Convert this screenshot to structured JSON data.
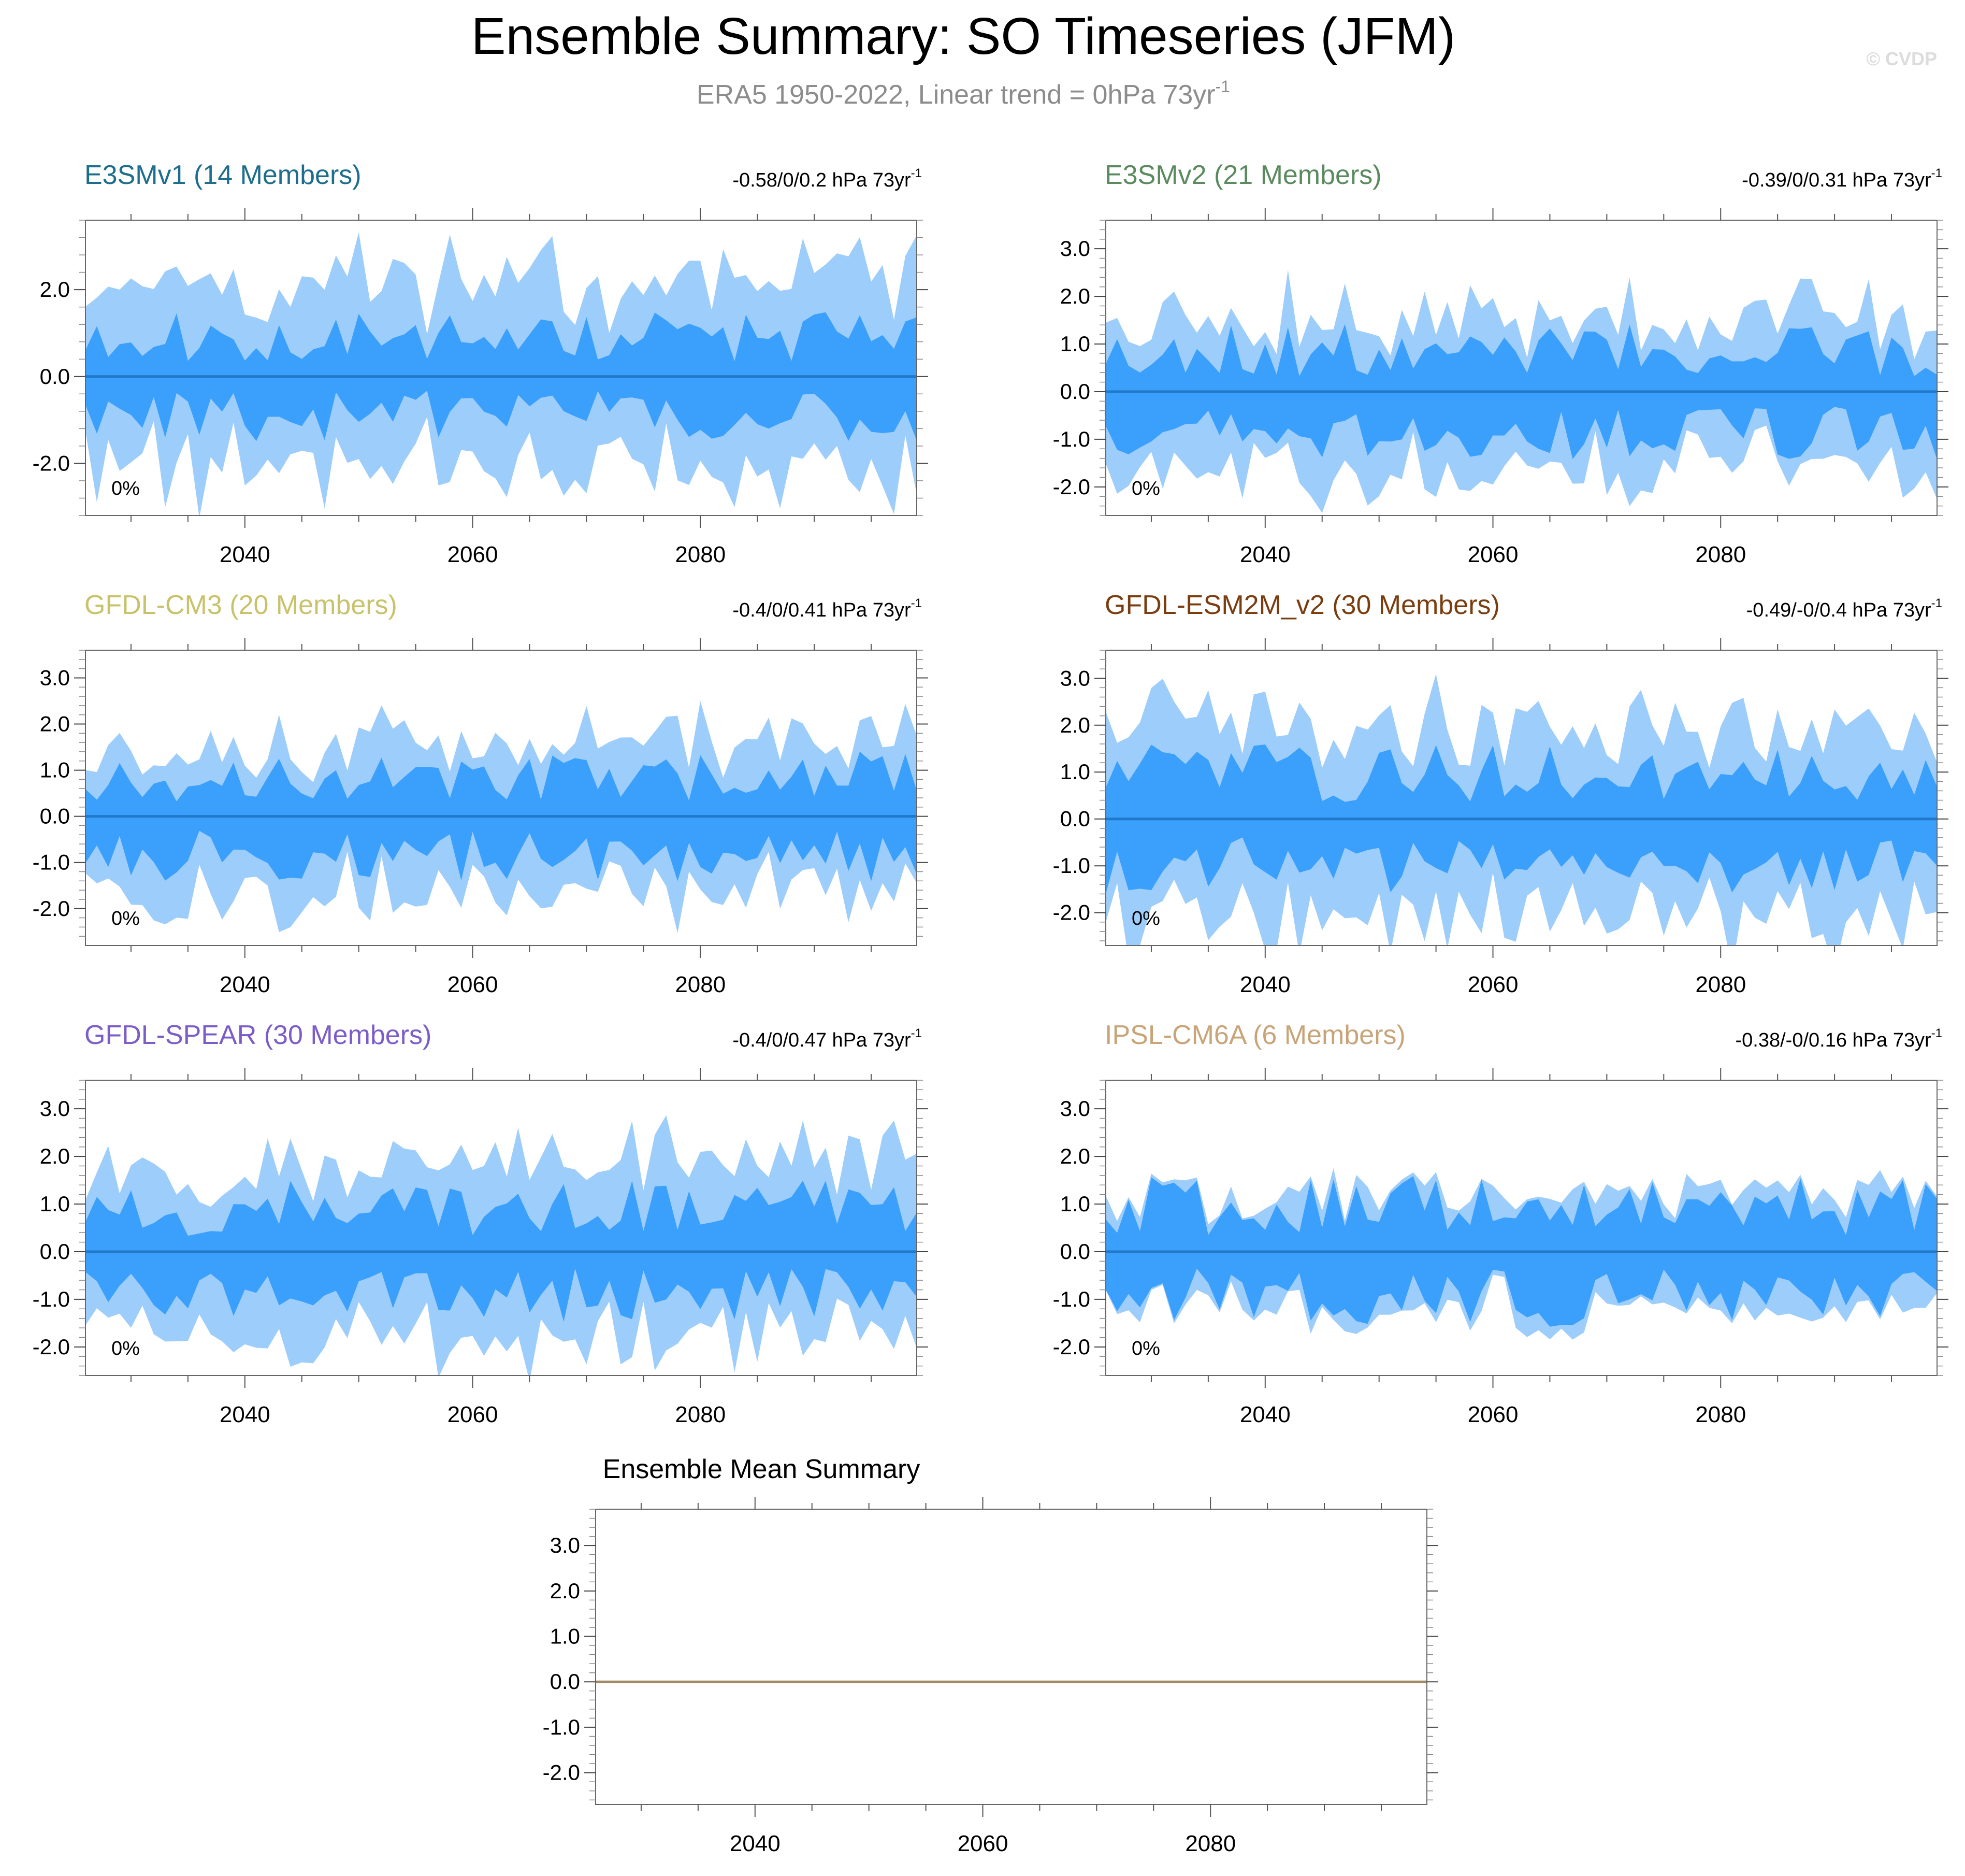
{
  "title": "Ensemble Summary: SO Timeseries (JFM)",
  "subtitle": "ERA5 1950-2022, Linear trend = 0hPa 73yr",
  "subtitle_sup": "-1",
  "watermark": "© CVDP",
  "colors": {
    "outer_band": "#9dcdfb",
    "inner_band": "#3b9ffc",
    "median_line": "#1f78c8",
    "mean_line": "#a28a62",
    "axis": "#000000"
  },
  "chart_data": [
    {
      "type": "area",
      "title": "E3SMv1 (14 Members)",
      "title_color": "#1c6e8c",
      "trend_label": "-0.58/0/0.2 hPa 73yr",
      "trend_sup": "-1",
      "pct_label": "0%",
      "xlim": [
        2026,
        2099
      ],
      "ylim": [
        -3.2,
        3.6
      ],
      "yticks": [
        -2.0,
        0.0,
        2.0
      ],
      "ytick_labels": [
        "-2.0",
        "0.0",
        "2.0"
      ],
      "xticks": [
        2040,
        2060,
        2080
      ],
      "xtick_labels": [
        "2040",
        "2060",
        "2080"
      ],
      "outer_amp": 1.0,
      "inner_amp": 0.42,
      "seed": 11
    },
    {
      "type": "area",
      "title": "E3SMv2 (21 Members)",
      "title_color": "#5a8a5e",
      "trend_label": "-0.39/0/0.31 hPa 73yr",
      "trend_sup": "-1",
      "pct_label": "0%",
      "xlim": [
        2026,
        2099
      ],
      "ylim": [
        -2.6,
        3.6
      ],
      "yticks": [
        -2.0,
        -1.0,
        0.0,
        1.0,
        2.0,
        3.0
      ],
      "ytick_labels": [
        "-2.0",
        "-1.0",
        "0.0",
        "1.0",
        "2.0",
        "3.0"
      ],
      "xticks": [
        2040,
        2060,
        2080
      ],
      "xtick_labels": [
        "2040",
        "2060",
        "2080"
      ],
      "outer_amp": 0.75,
      "inner_amp": 0.4,
      "seed": 23
    },
    {
      "type": "area",
      "title": "GFDL-CM3 (20 Members)",
      "title_color": "#c8c26a",
      "trend_label": "-0.4/0/0.41 hPa 73yr",
      "trend_sup": "-1",
      "pct_label": "0%",
      "xlim": [
        2026,
        2099
      ],
      "ylim": [
        -2.8,
        3.6
      ],
      "yticks": [
        -2.0,
        -1.0,
        0.0,
        1.0,
        2.0,
        3.0
      ],
      "ytick_labels": [
        "-2.0",
        "-1.0",
        "0.0",
        "1.0",
        "2.0",
        "3.0"
      ],
      "xticks": [
        2040,
        2060,
        2080
      ],
      "xtick_labels": [
        "2040",
        "2060",
        "2080"
      ],
      "outer_amp": 0.75,
      "inner_amp": 0.4,
      "seed": 37
    },
    {
      "type": "area",
      "title": "GFDL-ESM2M_v2 (30 Members)",
      "title_color": "#7a3d10",
      "trend_label": "-0.49/-0/0.4 hPa 73yr",
      "trend_sup": "-1",
      "pct_label": "0%",
      "xlim": [
        2026,
        2099
      ],
      "ylim": [
        -2.7,
        3.6
      ],
      "yticks": [
        -2.0,
        -1.0,
        0.0,
        1.0,
        2.0,
        3.0
      ],
      "ytick_labels": [
        "-2.0",
        "-1.0",
        "0.0",
        "1.0",
        "2.0",
        "3.0"
      ],
      "xticks": [
        2040,
        2060,
        2080
      ],
      "xtick_labels": [
        "2040",
        "2060",
        "2080"
      ],
      "outer_amp": 0.95,
      "inner_amp": 0.45,
      "seed": 41
    },
    {
      "type": "area",
      "title": "GFDL-SPEAR (30 Members)",
      "title_color": "#7b5cc8",
      "trend_label": "-0.4/0/0.47 hPa 73yr",
      "trend_sup": "-1",
      "pct_label": "0%",
      "xlim": [
        2026,
        2099
      ],
      "ylim": [
        -2.6,
        3.6
      ],
      "yticks": [
        -2.0,
        -1.0,
        0.0,
        1.0,
        2.0,
        3.0
      ],
      "ytick_labels": [
        "-2.0",
        "-1.0",
        "0.0",
        "1.0",
        "2.0",
        "3.0"
      ],
      "xticks": [
        2040,
        2060,
        2080
      ],
      "xtick_labels": [
        "2040",
        "2060",
        "2080"
      ],
      "outer_amp": 0.85,
      "inner_amp": 0.42,
      "seed": 53
    },
    {
      "type": "area",
      "title": "IPSL-CM6A (6 Members)",
      "title_color": "#c8a478",
      "trend_label": "-0.38/-0/0.16 hPa 73yr",
      "trend_sup": "-1",
      "pct_label": "0%",
      "xlim": [
        2026,
        2099
      ],
      "ylim": [
        -2.6,
        3.6
      ],
      "yticks": [
        -2.0,
        -1.0,
        0.0,
        1.0,
        2.0,
        3.0
      ],
      "ytick_labels": [
        "-2.0",
        "-1.0",
        "0.0",
        "1.0",
        "2.0",
        "3.0"
      ],
      "xticks": [
        2040,
        2060,
        2080
      ],
      "xtick_labels": [
        "2040",
        "2060",
        "2080"
      ],
      "outer_amp": 0.55,
      "inner_amp": 0.45,
      "seed": 67
    },
    {
      "type": "line",
      "title": "Ensemble Mean Summary",
      "title_color": "#000000",
      "xlim": [
        2026,
        2099
      ],
      "ylim": [
        -2.7,
        3.8
      ],
      "yticks": [
        -2.0,
        -1.0,
        0.0,
        1.0,
        2.0,
        3.0
      ],
      "ytick_labels": [
        "-2.0",
        "-1.0",
        "0.0",
        "1.0",
        "2.0",
        "3.0"
      ],
      "xticks": [
        2040,
        2060,
        2080
      ],
      "xtick_labels": [
        "2040",
        "2060",
        "2080"
      ],
      "mean_value": 0.0
    }
  ]
}
